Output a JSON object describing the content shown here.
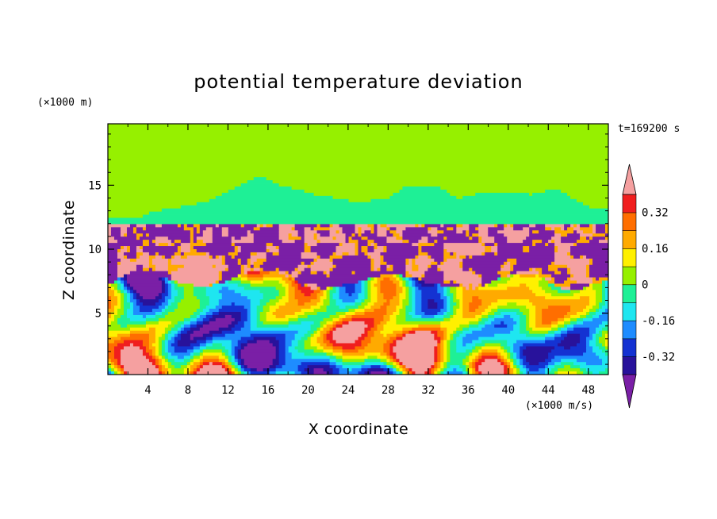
{
  "chart_data": {
    "type": "heatmap",
    "title": "potential temperature deviation",
    "xlabel": "X coordinate",
    "ylabel": "Z coordinate",
    "x_unit": "(×1000 m/s)",
    "y_unit": "(×1000 m)",
    "time_label": "t=169200 s",
    "xlim": [
      0,
      50
    ],
    "ylim": [
      0.2,
      19.8
    ],
    "x_ticks": [
      4,
      8,
      12,
      16,
      20,
      24,
      28,
      32,
      36,
      40,
      44,
      48
    ],
    "y_ticks": [
      5,
      10,
      15
    ],
    "colorbar": {
      "levels": [
        -0.4,
        -0.32,
        -0.24,
        -0.16,
        -0.08,
        0,
        0.08,
        0.16,
        0.24,
        0.32,
        0.4
      ],
      "labels": [
        "0.32",
        "0.16",
        "0",
        "-0.16",
        "-0.32"
      ],
      "label_values": [
        0.32,
        0.16,
        0,
        -0.16,
        -0.32
      ],
      "colors": [
        "#7a1fa6",
        "#28129b",
        "#1432d2",
        "#1e8cff",
        "#1ee6f0",
        "#1ef096",
        "#96f000",
        "#fff000",
        "#ffaa00",
        "#ff6e00",
        "#f01e1e",
        "#f5a0a0"
      ],
      "extend": "both"
    },
    "layers": {
      "stratosphere_value": 0.04,
      "tropopause_z": 11.9,
      "anomaly_band_value": 0.45,
      "anomaly_band_z": [
        7.5,
        11.9
      ],
      "lower_pattern": "convective cells"
    }
  }
}
